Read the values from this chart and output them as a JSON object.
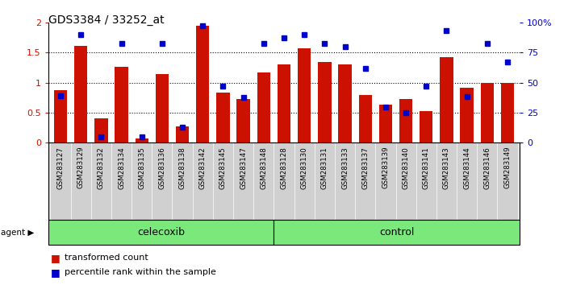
{
  "title": "GDS3384 / 33252_at",
  "samples": [
    "GSM283127",
    "GSM283129",
    "GSM283132",
    "GSM283134",
    "GSM283135",
    "GSM283136",
    "GSM283138",
    "GSM283142",
    "GSM283145",
    "GSM283147",
    "GSM283148",
    "GSM283128",
    "GSM283130",
    "GSM283131",
    "GSM283133",
    "GSM283137",
    "GSM283139",
    "GSM283140",
    "GSM283141",
    "GSM283143",
    "GSM283144",
    "GSM283146",
    "GSM283149"
  ],
  "transformed_count": [
    0.88,
    1.62,
    0.41,
    1.27,
    0.07,
    1.14,
    0.27,
    1.95,
    0.84,
    0.72,
    1.17,
    1.3,
    1.57,
    1.35,
    1.31,
    0.8,
    0.63,
    0.72,
    0.52,
    1.43,
    0.92,
    0.99,
    1.0
  ],
  "percentile_rank": [
    0.78,
    1.8,
    0.09,
    1.65,
    0.09,
    1.65,
    0.26,
    1.95,
    0.94,
    0.75,
    1.65,
    1.75,
    1.8,
    1.65,
    1.6,
    1.24,
    0.59,
    0.5,
    0.94,
    1.87,
    0.77,
    1.65,
    1.35
  ],
  "celecoxib_count": 11,
  "control_count": 12,
  "bar_color": "#cc1100",
  "dot_color": "#0000cc",
  "plot_bg": "#ffffff",
  "xtick_bg": "#d0d0d0",
  "agent_section_color": "#7ae87a",
  "agent_border_color": "#006600",
  "ylim_left": [
    0,
    2
  ],
  "ylim_right": [
    0,
    100
  ],
  "yticks_left": [
    0,
    0.5,
    1.0,
    1.5,
    2.0
  ],
  "ytick_labels_left": [
    "0",
    "0.5",
    "1",
    "1.5",
    "2"
  ],
  "yticks_right": [
    0,
    25,
    50,
    75,
    100
  ],
  "ytick_labels_right": [
    "0",
    "25",
    "50",
    "75",
    "100%"
  ]
}
